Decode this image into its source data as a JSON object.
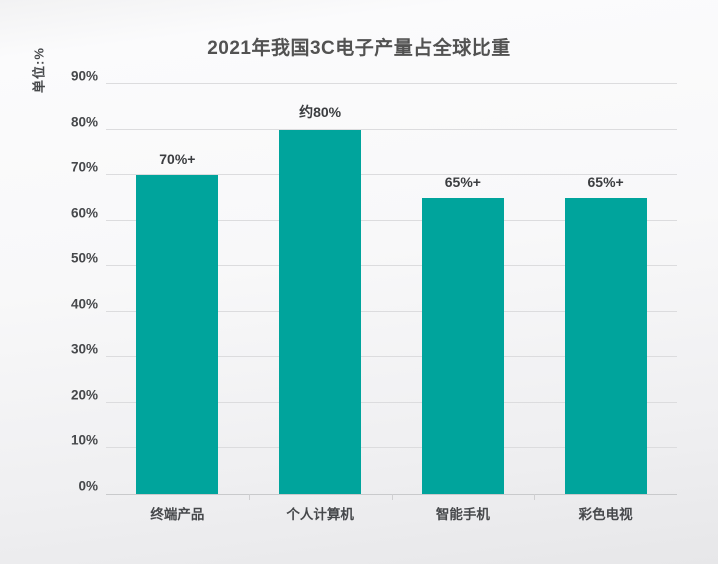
{
  "title": "2021年我国3C电子产量占全球比重",
  "y_axis_unit": "单位:%",
  "colors": {
    "bar": "#00A49C",
    "title_text": "#525252",
    "axis_text": "#46484B",
    "value_label_text": "#3B3D40",
    "gridline": "#DCDCDE",
    "axis_line": "#C9CACC",
    "tick_mark": "#CFCFD1"
  },
  "chart_data": {
    "type": "bar",
    "title": "2021年我国3C电子产量占全球比重",
    "ylabel": "单位:%",
    "xlabel": "",
    "categories": [
      "终端产品",
      "个人计算机",
      "智能手机",
      "彩色电视"
    ],
    "values": [
      70,
      80,
      65,
      65
    ],
    "value_labels": [
      "70%+",
      "约80%",
      "65%+",
      "65%+"
    ],
    "ylim": [
      0,
      90
    ],
    "y_tick_values": [
      0,
      10,
      20,
      30,
      40,
      50,
      60,
      70,
      80,
      90
    ],
    "y_tick_labels": [
      "0%",
      "10%",
      "20%",
      "30%",
      "40%",
      "50%",
      "60%",
      "70%",
      "80%",
      "90%"
    ],
    "grid": true,
    "legend": false,
    "bar_color": "#00A49C"
  }
}
